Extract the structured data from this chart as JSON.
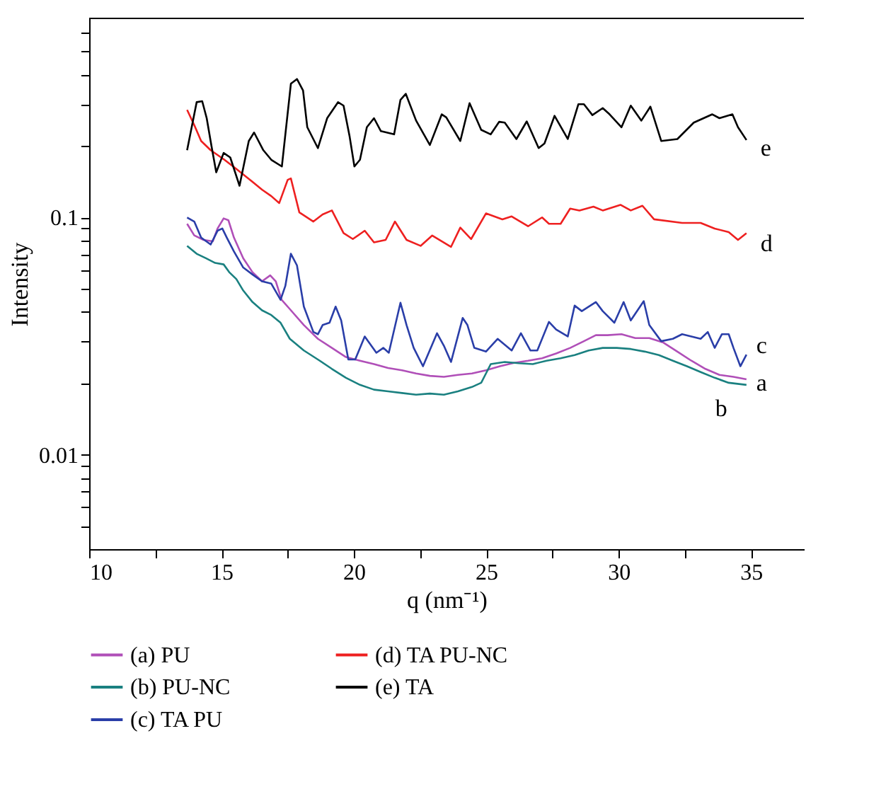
{
  "chart_data": {
    "type": "line",
    "xlabel": "q (nm⁻¹)",
    "ylabel": "Intensity",
    "log": "y",
    "grid": false,
    "legend": "bottom",
    "line_style": "solid",
    "xlim": [
      10,
      37
    ],
    "xticks": [
      10,
      {
        "value": 12.5,
        "label": null
      },
      15,
      {
        "value": 17.5,
        "label": null
      },
      20,
      {
        "value": 22.5,
        "label": null
      },
      25,
      {
        "value": 27.5,
        "label": null
      },
      30,
      {
        "value": 32.5,
        "label": null
      },
      35
    ],
    "ylim": [
      0.004,
      0.69
    ],
    "yticks": [
      {
        "value": 0.005,
        "label": null
      },
      {
        "value": 0.006,
        "label": null
      },
      {
        "value": 0.007,
        "label": null
      },
      {
        "value": 0.008,
        "label": null
      },
      {
        "value": 0.009,
        "label": null
      },
      0.01,
      {
        "value": 0.02,
        "label": null
      },
      {
        "value": 0.03,
        "label": null
      },
      {
        "value": 0.04,
        "label": null
      },
      {
        "value": 0.05,
        "label": null
      },
      {
        "value": 0.06,
        "label": null
      },
      {
        "value": 0.07,
        "label": null
      },
      {
        "value": 0.08,
        "label": null
      },
      {
        "value": 0.09,
        "label": null
      },
      0.1,
      {
        "value": 0.2,
        "label": null
      },
      {
        "value": 0.3,
        "label": null
      },
      {
        "value": 0.4,
        "label": null
      },
      {
        "value": 0.5,
        "label": null
      },
      {
        "value": 0.6,
        "label": null
      }
    ],
    "series": [
      {
        "name": "(a) PU",
        "color": "#b04fb8",
        "x": [
          13.7,
          13.97,
          14.32,
          14.67,
          14.85,
          15.08,
          15.26,
          15.47,
          15.82,
          16.17,
          16.53,
          16.84,
          17.05,
          17.27,
          17.58,
          18.11,
          18.64,
          19.17,
          19.7,
          20.23,
          20.76,
          21.29,
          21.82,
          22.35,
          22.87,
          23.4,
          23.93,
          24.46,
          24.99,
          25.52,
          26.05,
          26.58,
          27.11,
          27.64,
          28.17,
          28.69,
          29.14,
          29.58,
          30.11,
          30.63,
          31.16,
          31.69,
          32.22,
          32.75,
          33.28,
          33.81,
          34.34,
          34.83
        ],
        "values": [
          0.094,
          0.084,
          0.0804,
          0.0793,
          0.0898,
          0.0991,
          0.0973,
          0.0822,
          0.0673,
          0.0588,
          0.0538,
          0.057,
          0.0538,
          0.045,
          0.0411,
          0.0352,
          0.0308,
          0.0282,
          0.0258,
          0.0249,
          0.0241,
          0.0232,
          0.0227,
          0.022,
          0.0215,
          0.0213,
          0.0217,
          0.022,
          0.0227,
          0.0236,
          0.0244,
          0.0249,
          0.0255,
          0.0267,
          0.0282,
          0.0301,
          0.0319,
          0.0319,
          0.0322,
          0.031,
          0.031,
          0.0297,
          0.0272,
          0.0249,
          0.023,
          0.0217,
          0.0213,
          0.0208
        ]
      },
      {
        "name": "(b) PU-NC",
        "color": "#1a8080",
        "x": [
          13.7,
          14.06,
          14.41,
          14.76,
          15.08,
          15.29,
          15.56,
          15.82,
          16.17,
          16.53,
          16.88,
          17.23,
          17.58,
          18.11,
          18.64,
          19.17,
          19.7,
          20.23,
          20.76,
          21.29,
          21.82,
          22.35,
          22.87,
          23.4,
          23.93,
          24.46,
          24.81,
          24.99,
          25.17,
          25.7,
          26.23,
          26.76,
          27.28,
          27.81,
          28.34,
          28.87,
          29.4,
          29.93,
          30.46,
          30.99,
          31.52,
          32.05,
          32.58,
          33.1,
          33.63,
          34.16,
          34.83
        ],
        "values": [
          0.0759,
          0.0703,
          0.0673,
          0.0643,
          0.0634,
          0.0588,
          0.055,
          0.0492,
          0.044,
          0.0406,
          0.0388,
          0.036,
          0.0308,
          0.0275,
          0.0252,
          0.023,
          0.0211,
          0.0197,
          0.0188,
          0.0185,
          0.0182,
          0.0179,
          0.0181,
          0.0179,
          0.0185,
          0.0193,
          0.0201,
          0.022,
          0.0241,
          0.0246,
          0.0243,
          0.0241,
          0.0249,
          0.0255,
          0.0263,
          0.0275,
          0.0282,
          0.0282,
          0.0279,
          0.0272,
          0.0263,
          0.0249,
          0.0236,
          0.0223,
          0.0211,
          0.0201,
          0.0197
        ]
      },
      {
        "name": "(c) TA PU",
        "color": "#2a3ea8",
        "x": [
          13.7,
          13.97,
          14.23,
          14.59,
          14.85,
          15.03,
          15.2,
          15.47,
          15.82,
          16.17,
          16.53,
          16.88,
          17.23,
          17.41,
          17.62,
          17.85,
          18.11,
          18.47,
          18.64,
          18.82,
          19.08,
          19.31,
          19.52,
          19.79,
          20.05,
          20.41,
          20.85,
          21.11,
          21.32,
          21.76,
          21.99,
          22.26,
          22.61,
          23.14,
          23.4,
          23.67,
          24.11,
          24.29,
          24.55,
          24.99,
          25.43,
          25.96,
          26.31,
          26.67,
          26.93,
          27.37,
          27.64,
          28.08,
          28.34,
          28.61,
          29.14,
          29.4,
          29.84,
          30.19,
          30.46,
          30.95,
          31.16,
          31.61,
          32.05,
          32.4,
          32.75,
          33.1,
          33.37,
          33.63,
          33.9,
          34.16,
          34.34,
          34.6,
          34.83
        ],
        "values": [
          0.1,
          0.0961,
          0.0822,
          0.0769,
          0.0879,
          0.0898,
          0.0822,
          0.0719,
          0.0615,
          0.0575,
          0.0538,
          0.0526,
          0.045,
          0.0514,
          0.0703,
          0.0628,
          0.0421,
          0.0329,
          0.0322,
          0.0352,
          0.036,
          0.0421,
          0.0368,
          0.0252,
          0.0252,
          0.0315,
          0.0269,
          0.0282,
          0.0269,
          0.0437,
          0.0352,
          0.0282,
          0.0236,
          0.0325,
          0.0288,
          0.0246,
          0.0377,
          0.0352,
          0.0282,
          0.0272,
          0.0308,
          0.0275,
          0.0325,
          0.0275,
          0.0275,
          0.0363,
          0.0337,
          0.0315,
          0.0425,
          0.0403,
          0.044,
          0.0403,
          0.036,
          0.044,
          0.0368,
          0.0444,
          0.0352,
          0.0301,
          0.0308,
          0.0322,
          0.0315,
          0.0308,
          0.0329,
          0.0282,
          0.0322,
          0.0322,
          0.0282,
          0.0236,
          0.0264
        ]
      },
      {
        "name": "(d) TA PU-NC",
        "color": "#ee2020",
        "x": [
          13.7,
          13.97,
          14.23,
          14.59,
          15.11,
          15.56,
          16.08,
          16.53,
          16.88,
          17.18,
          17.5,
          17.62,
          17.94,
          18.47,
          18.82,
          19.17,
          19.61,
          19.96,
          20.41,
          20.76,
          21.2,
          21.55,
          21.99,
          22.52,
          22.96,
          23.67,
          24.02,
          24.43,
          24.99,
          25.61,
          25.96,
          26.58,
          27.11,
          27.37,
          27.81,
          28.17,
          28.52,
          29.05,
          29.4,
          30.07,
          30.46,
          30.9,
          31.34,
          32.4,
          33.1,
          33.63,
          34.16,
          34.51,
          34.83
        ],
        "values": [
          0.284,
          0.245,
          0.21,
          0.192,
          0.175,
          0.16,
          0.144,
          0.131,
          0.123,
          0.115,
          0.144,
          0.146,
          0.105,
          0.0961,
          0.103,
          0.107,
          0.0859,
          0.0811,
          0.0879,
          0.0785,
          0.0804,
          0.0961,
          0.0804,
          0.0759,
          0.0839,
          0.0752,
          0.0906,
          0.0811,
          0.104,
          0.0982,
          0.101,
          0.0918,
          0.1,
          0.094,
          0.094,
          0.109,
          0.107,
          0.111,
          0.107,
          0.113,
          0.107,
          0.112,
          0.0982,
          0.0948,
          0.0948,
          0.0898,
          0.0867,
          0.0804,
          0.0859
        ]
      },
      {
        "name": "(e) TA",
        "color": "#000000",
        "x": [
          13.7,
          14.06,
          14.27,
          14.44,
          14.62,
          14.8,
          15.08,
          15.33,
          15.68,
          16.03,
          16.23,
          16.58,
          16.88,
          17.28,
          17.62,
          17.85,
          18.08,
          18.24,
          18.64,
          18.99,
          19.4,
          19.61,
          19.84,
          20.02,
          20.23,
          20.49,
          20.76,
          21.02,
          21.52,
          21.76,
          21.96,
          22.35,
          22.87,
          23.32,
          23.49,
          24.02,
          24.37,
          24.81,
          25.17,
          25.49,
          25.7,
          26.14,
          26.53,
          26.98,
          27.2,
          27.58,
          28.08,
          28.48,
          28.69,
          29.01,
          29.4,
          29.66,
          30.11,
          30.46,
          30.86,
          31.2,
          31.61,
          32.22,
          32.84,
          33.54,
          33.81,
          34.3,
          34.51,
          34.83
        ],
        "values": [
          0.192,
          0.306,
          0.309,
          0.262,
          0.2,
          0.155,
          0.187,
          0.179,
          0.136,
          0.21,
          0.228,
          0.192,
          0.175,
          0.164,
          0.366,
          0.383,
          0.343,
          0.24,
          0.196,
          0.262,
          0.306,
          0.296,
          0.219,
          0.164,
          0.175,
          0.24,
          0.262,
          0.231,
          0.224,
          0.313,
          0.332,
          0.256,
          0.202,
          0.272,
          0.264,
          0.21,
          0.303,
          0.234,
          0.224,
          0.253,
          0.251,
          0.214,
          0.254,
          0.196,
          0.205,
          0.268,
          0.214,
          0.3,
          0.3,
          0.27,
          0.289,
          0.272,
          0.24,
          0.296,
          0.256,
          0.293,
          0.21,
          0.214,
          0.251,
          0.272,
          0.262,
          0.272,
          0.24,
          0.212
        ]
      }
    ],
    "annotations": [
      "a",
      "b",
      "c",
      "d",
      "e"
    ]
  }
}
